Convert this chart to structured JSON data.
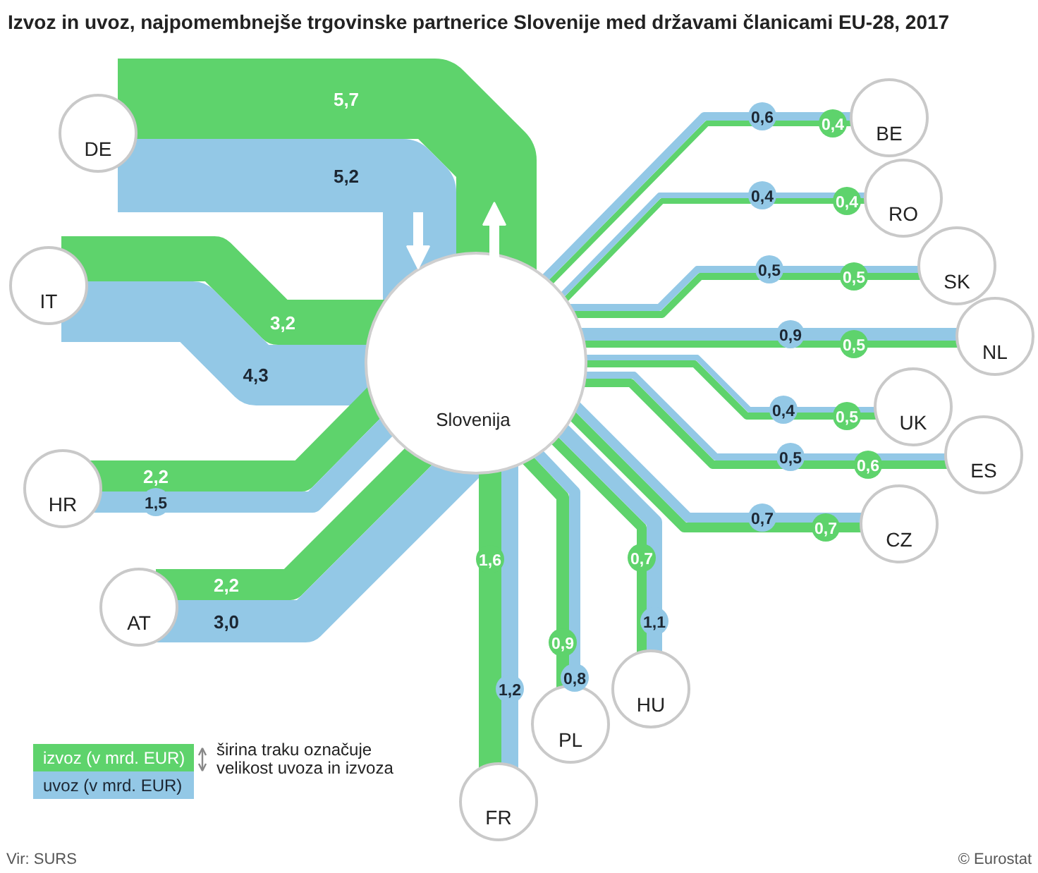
{
  "chart_data": {
    "type": "other",
    "title": "Izvoz in uvoz, najpomembnejše trgovinske partnerice Slovenije med državami članicami EU-28, 2017",
    "categories": [
      "DE",
      "IT",
      "HR",
      "AT",
      "FR",
      "PL",
      "HU",
      "CZ",
      "ES",
      "UK",
      "NL",
      "SK",
      "RO",
      "BE"
    ],
    "series": [
      {
        "name": "izvoz (v mrd. EUR)",
        "color": "#5ed36c",
        "values": [
          5.7,
          3.2,
          2.2,
          2.2,
          1.6,
          0.9,
          0.7,
          0.7,
          0.6,
          0.5,
          0.5,
          0.5,
          0.4,
          0.4
        ],
        "value_labels": [
          "5,7",
          "3,2",
          "2,2",
          "2,2",
          "1,6",
          "0,9",
          "0,7",
          "0,7",
          "0,6",
          "0,5",
          "0,5",
          "0,5",
          "0,4",
          "0,4"
        ]
      },
      {
        "name": "uvoz (v mrd. EUR)",
        "color": "#93c8e6",
        "values": [
          5.2,
          4.3,
          1.5,
          3.0,
          1.2,
          0.8,
          1.1,
          0.7,
          0.5,
          0.4,
          0.9,
          0.5,
          0.4,
          0.6
        ],
        "value_labels": [
          "5,2",
          "4,3",
          "1,5",
          "3,0",
          "1,2",
          "0,8",
          "1,1",
          "0,7",
          "0,5",
          "0,4",
          "0,9",
          "0,5",
          "0,4",
          "0,6"
        ]
      }
    ],
    "legend": "bottom left",
    "annotations": [
      "Slovenija",
      "širina traku označuje velikost uvoza in izvoza",
      "Vir: SURS",
      "© Eurostat"
    ]
  }
}
